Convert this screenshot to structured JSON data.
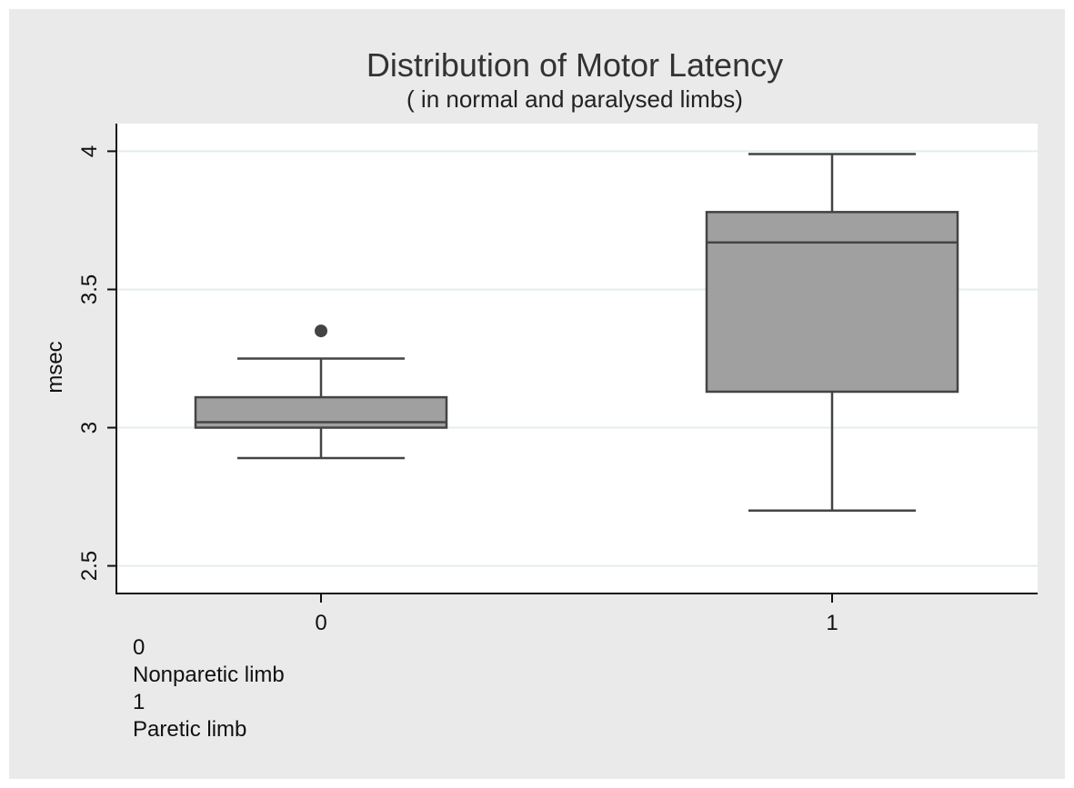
{
  "colors": {
    "background": "#eaeaea",
    "plot_background": "#ffffff",
    "box_fill": "#a0a0a0",
    "line": "#444444",
    "grid": "#e4ecec"
  },
  "chart_data": {
    "type": "box",
    "title": "Distribution of Motor Latency",
    "subtitle": "( in normal and paralysed limbs)",
    "xlabel": "",
    "ylabel": "msec",
    "ylim": [
      2.4,
      4.1
    ],
    "yticks": [
      2.5,
      3,
      3.5,
      4
    ],
    "ytick_labels": [
      "2.5",
      "3",
      "3.5",
      "4"
    ],
    "grid": true,
    "categories": [
      "0",
      "1"
    ],
    "boxes": [
      {
        "category": "0",
        "whisker_low": 2.89,
        "q1": 3.0,
        "median": 3.02,
        "q3": 3.11,
        "whisker_high": 3.25,
        "outliers": [
          3.35
        ]
      },
      {
        "category": "1",
        "whisker_low": 2.7,
        "q1": 3.13,
        "median": 3.67,
        "q3": 3.78,
        "whisker_high": 3.99,
        "outliers": []
      }
    ],
    "notes": [
      "0",
      "Nonparetic limb",
      "1",
      "Paretic limb"
    ]
  }
}
